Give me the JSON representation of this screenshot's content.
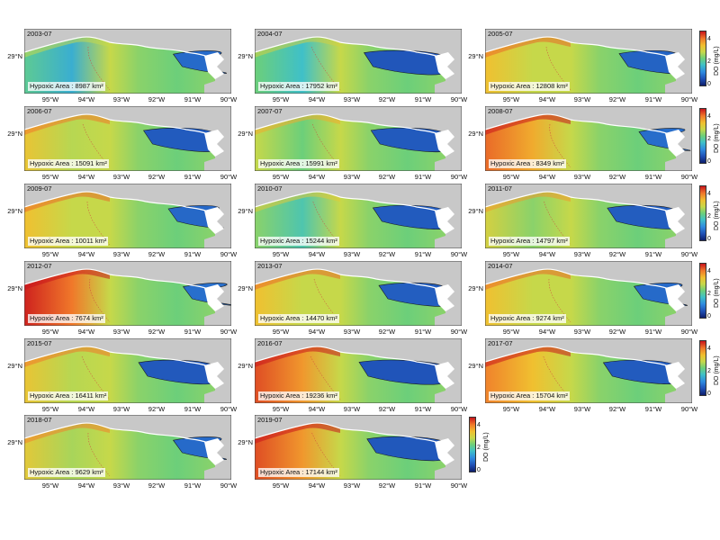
{
  "panels": [
    {
      "year": "2003-07",
      "area": "Hypoxic Area : 8987 km²",
      "hypoxia": 0.45,
      "west": 2.2
    },
    {
      "year": "2004-07",
      "area": "Hypoxic Area : 17952 km²",
      "hypoxia": 0.85,
      "west": 2.4
    },
    {
      "year": "2005-07",
      "area": "Hypoxic Area : 12808 km²",
      "hypoxia": 0.6,
      "west": 3.6
    },
    {
      "year": "2006-07",
      "area": "Hypoxic Area : 15091 km²",
      "hypoxia": 0.75,
      "west": 3.5
    },
    {
      "year": "2007-07",
      "area": "Hypoxic Area : 15991 km²",
      "hypoxia": 0.78,
      "west": 3.0
    },
    {
      "year": "2008-07",
      "area": "Hypoxic Area : 8349 km²",
      "hypoxia": 0.4,
      "west": 4.4
    },
    {
      "year": "2009-07",
      "area": "Hypoxic Area : 10011 km²",
      "hypoxia": 0.5,
      "west": 3.6
    },
    {
      "year": "2010-07",
      "area": "Hypoxic Area : 15244 km²",
      "hypoxia": 0.76,
      "west": 2.6
    },
    {
      "year": "2011-07",
      "area": "Hypoxic Area : 14797 km²",
      "hypoxia": 0.72,
      "west": 3.2
    },
    {
      "year": "2012-07",
      "area": "Hypoxic Area : 7674 km²",
      "hypoxia": 0.35,
      "west": 4.9
    },
    {
      "year": "2013-07",
      "area": "Hypoxic Area : 14470 km²",
      "hypoxia": 0.7,
      "west": 3.6
    },
    {
      "year": "2014-07",
      "area": "Hypoxic Area : 9274 km²",
      "hypoxia": 0.45,
      "west": 3.6
    },
    {
      "year": "2015-07",
      "area": "Hypoxic Area : 16411 km²",
      "hypoxia": 0.8,
      "west": 3.5
    },
    {
      "year": "2016-07",
      "area": "Hypoxic Area : 19236 km²",
      "hypoxia": 0.9,
      "west": 4.6
    },
    {
      "year": "2017-07",
      "area": "Hypoxic Area : 15704 km²",
      "hypoxia": 0.76,
      "west": 4.2
    },
    {
      "year": "2018-07",
      "area": "Hypoxic Area : 9629 km²",
      "hypoxia": 0.45,
      "west": 3.4
    },
    {
      "year": "2019-07",
      "area": "Hypoxic Area : 17144 km²",
      "hypoxia": 0.82,
      "west": 4.6
    }
  ],
  "lat_label": "29°N",
  "lon_labels": [
    "95°W",
    "94°W",
    "93°W",
    "92°W",
    "91°W",
    "90°W"
  ],
  "colorbar": {
    "label": "DO (mg/L)",
    "ticks": [
      "0",
      "2",
      "4"
    ]
  },
  "colors": {
    "land": "#c8c8c8",
    "contour_hypoxia": "#1a1a1a",
    "contour_red": "#d23c3c"
  }
}
